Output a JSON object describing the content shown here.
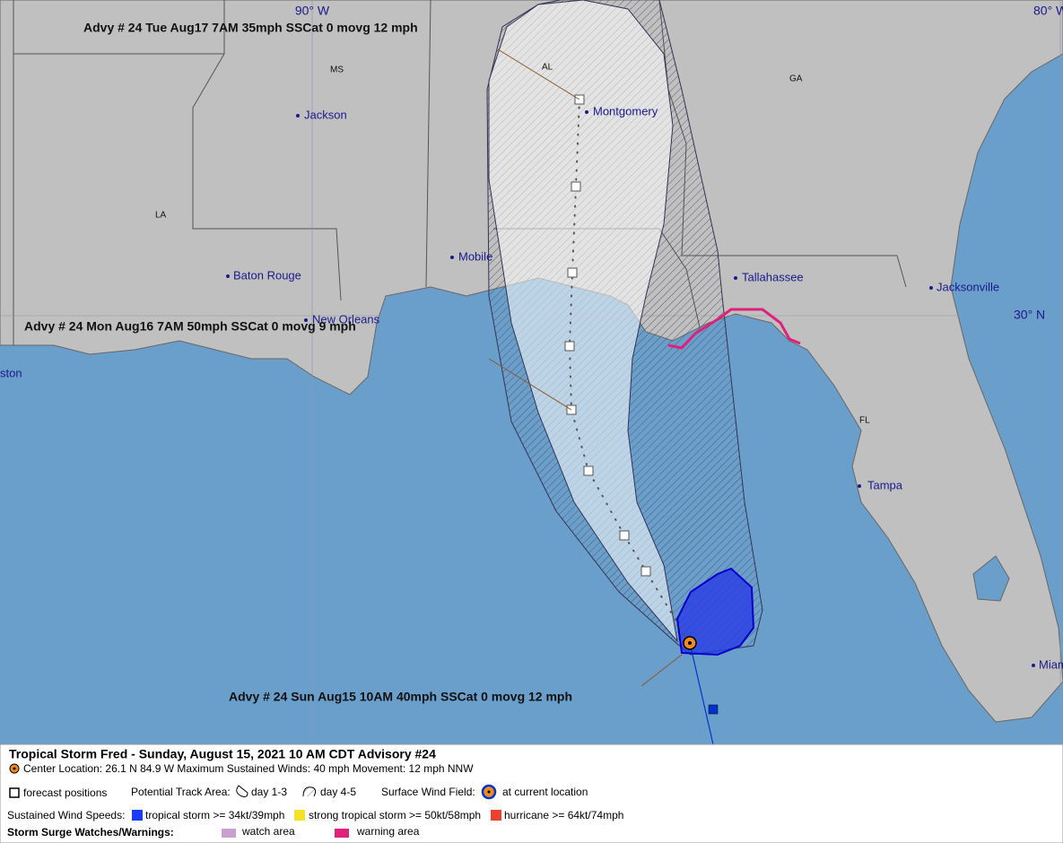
{
  "map": {
    "graticule": [
      "90° W",
      "80° W",
      "30° N"
    ],
    "states": [
      "MS",
      "AL",
      "GA",
      "LA",
      "FL"
    ],
    "cities": [
      "Jackson",
      "Montgomery",
      "Baton Rouge",
      "Mobile",
      "Tallahassee",
      "Jacksonville",
      "New Orleans",
      "ston",
      "Tampa",
      "Miam"
    ],
    "advisories": [
      "Advy # 24 Tue Aug17 7AM  35mph SSCat 0 movg 12 mph",
      "Advy # 24 Mon Aug16 7AM  50mph SSCat 0 movg 9 mph",
      "Advy # 24 Sun Aug15 10AM  40mph SSCat 0 movg 12 mph"
    ]
  },
  "legend": {
    "title": "Tropical Storm Fred  -  Sunday, August 15, 2021  10 AM CDT   Advisory #24",
    "info": "Center Location: 26.1 N  84.9 W   Maximum Sustained Winds: 40 mph   Movement: 12 mph NNW",
    "forecast": "forecast positions",
    "track_area": "Potential Track Area:",
    "day13": "day 1-3",
    "day45": "day 4-5",
    "wind_field": "Surface Wind Field:",
    "current": "at current location",
    "speeds": "Sustained Wind Speeds:",
    "ts": "tropical storm >= 34kt/39mph",
    "sts": "strong tropical storm >= 50kt/58mph",
    "hu": "hurricane >= 64kt/74mph",
    "surge": "Storm Surge Watches/Warnings:",
    "watch": "watch area",
    "warning": "warning area"
  }
}
